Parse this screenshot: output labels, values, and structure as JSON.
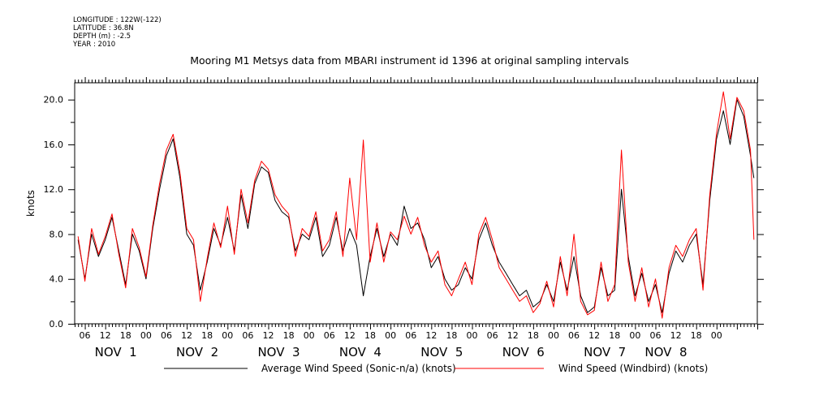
{
  "meta": {
    "longitude": "LONGITUDE : 122W(-122)",
    "latitude": "LATITUDE : 36.8N",
    "depth": "DEPTH (m) : -2.5",
    "year": "YEAR : 2010"
  },
  "chart_data": {
    "type": "line",
    "title": "Mooring M1 Metsys data from MBARI instrument id 1396 at original sampling intervals",
    "xlabel": "",
    "ylabel": "knots",
    "x_units": "hours since NOV 1 00:00 (2010)",
    "xlim": [
      3,
      204
    ],
    "ylim": [
      0,
      21.5
    ],
    "y_ticks": [
      0.0,
      4.0,
      8.0,
      12.0,
      16.0,
      20.0
    ],
    "y_tick_labels": [
      "0.0",
      "4.0",
      "8.0",
      "12.0",
      "16.0",
      "20.0"
    ],
    "x_hour_labels": [
      "06",
      "12",
      "18",
      "00",
      "06",
      "12",
      "18",
      "00",
      "06",
      "12",
      "18",
      "00",
      "06",
      "12",
      "18",
      "00",
      "06",
      "12",
      "18",
      "00",
      "06",
      "12",
      "18",
      "00",
      "06",
      "12",
      "18",
      "00",
      "06",
      "12",
      "18",
      "00"
    ],
    "x_hour_label_positions": [
      6,
      12,
      18,
      24,
      30,
      36,
      42,
      48,
      54,
      60,
      66,
      72,
      78,
      84,
      90,
      96,
      102,
      108,
      114,
      120,
      126,
      132,
      138,
      144,
      150,
      156,
      162,
      168,
      174,
      180,
      186,
      192
    ],
    "day_labels": [
      "NOV  1",
      "NOV  2",
      "NOV  3",
      "NOV  4",
      "NOV  5",
      "NOV  6",
      "NOV  7",
      "NOV  8"
    ],
    "day_label_positions": [
      12,
      36,
      60,
      84,
      108,
      132,
      156,
      174
    ],
    "grid": false,
    "legend_position": "bottom",
    "series": [
      {
        "name": "Average Wind Speed (Sonic-n/a) (knots)",
        "color": "#000000",
        "x": [
          4,
          6,
          8,
          10,
          12,
          14,
          16,
          18,
          20,
          22,
          24,
          26,
          28,
          30,
          32,
          34,
          36,
          38,
          40,
          42,
          44,
          46,
          48,
          50,
          52,
          54,
          56,
          58,
          60,
          62,
          64,
          66,
          68,
          70,
          72,
          74,
          76,
          78,
          80,
          82,
          84,
          86,
          88,
          90,
          92,
          94,
          96,
          98,
          100,
          102,
          104,
          106,
          108,
          110,
          112,
          114,
          116,
          118,
          120,
          122,
          124,
          126,
          128,
          130,
          132,
          134,
          136,
          138,
          140,
          142,
          144,
          146,
          148,
          150,
          152,
          154,
          156,
          158,
          160,
          162,
          164,
          166,
          168,
          170,
          172,
          174,
          176,
          178,
          180,
          182,
          184,
          186,
          188,
          190,
          192,
          194,
          196,
          198,
          200,
          202,
          203
        ],
        "y": [
          7.5,
          4.0,
          8.0,
          6.0,
          7.5,
          9.5,
          6.5,
          3.5,
          8.0,
          6.5,
          4.0,
          8.5,
          12.0,
          15.0,
          16.5,
          13.0,
          8.0,
          7.0,
          3.0,
          5.5,
          8.5,
          7.0,
          9.5,
          6.5,
          11.5,
          8.5,
          12.5,
          14.0,
          13.5,
          11.0,
          10.0,
          9.5,
          6.5,
          8.0,
          7.5,
          9.5,
          6.0,
          7.0,
          9.5,
          6.5,
          8.5,
          7.0,
          2.5,
          6.0,
          8.5,
          6.0,
          8.0,
          7.0,
          10.5,
          8.5,
          9.0,
          7.5,
          5.0,
          6.0,
          4.0,
          3.0,
          3.5,
          5.0,
          4.0,
          7.5,
          9.0,
          7.0,
          5.5,
          4.5,
          3.5,
          2.5,
          3.0,
          1.5,
          2.0,
          3.5,
          2.0,
          5.5,
          3.0,
          6.0,
          2.5,
          1.0,
          1.5,
          5.0,
          2.5,
          3.0,
          12.0,
          6.0,
          2.5,
          4.5,
          2.0,
          3.5,
          1.0,
          4.5,
          6.5,
          5.5,
          7.0,
          8.0,
          3.5,
          11.0,
          16.5,
          19.0,
          16.0,
          20.0,
          18.5,
          15.0,
          13.0
        ]
      },
      {
        "name": "Wind Speed (Windbird) (knots)",
        "color": "#ff0000",
        "x": [
          4,
          6,
          8,
          10,
          12,
          14,
          16,
          18,
          20,
          22,
          24,
          26,
          28,
          30,
          32,
          34,
          36,
          38,
          40,
          42,
          44,
          46,
          48,
          50,
          52,
          54,
          56,
          58,
          60,
          62,
          64,
          66,
          68,
          70,
          72,
          74,
          76,
          78,
          80,
          82,
          84,
          86,
          88,
          90,
          92,
          94,
          96,
          98,
          100,
          102,
          104,
          106,
          108,
          110,
          112,
          114,
          116,
          118,
          120,
          122,
          124,
          126,
          128,
          130,
          132,
          134,
          136,
          138,
          140,
          142,
          144,
          146,
          148,
          150,
          152,
          154,
          156,
          158,
          160,
          162,
          164,
          166,
          168,
          170,
          172,
          174,
          176,
          178,
          180,
          182,
          184,
          186,
          188,
          190,
          192,
          194,
          196,
          198,
          200,
          202,
          203
        ],
        "y": [
          7.8,
          3.8,
          8.5,
          6.2,
          7.8,
          9.8,
          6.2,
          3.2,
          8.5,
          6.8,
          4.2,
          8.8,
          12.5,
          15.5,
          16.9,
          13.5,
          8.5,
          7.5,
          2.0,
          5.8,
          9.0,
          6.8,
          10.5,
          6.2,
          12.0,
          9.0,
          12.8,
          14.5,
          13.8,
          11.5,
          10.5,
          9.8,
          6.0,
          8.5,
          7.8,
          10.0,
          6.5,
          7.5,
          10.0,
          6.0,
          13.0,
          7.5,
          16.4,
          5.5,
          9.0,
          5.5,
          8.2,
          7.5,
          9.6,
          8.0,
          9.5,
          7.0,
          5.5,
          6.5,
          3.5,
          2.5,
          4.0,
          5.5,
          3.5,
          8.0,
          9.5,
          7.5,
          5.0,
          4.0,
          3.0,
          2.0,
          2.5,
          1.0,
          1.8,
          3.8,
          1.5,
          6.0,
          2.5,
          8.0,
          2.0,
          0.8,
          1.2,
          5.5,
          2.0,
          3.5,
          15.5,
          5.5,
          2.0,
          5.0,
          1.5,
          4.0,
          0.5,
          5.0,
          7.0,
          6.0,
          7.5,
          8.5,
          3.0,
          11.5,
          17.0,
          20.7,
          16.5,
          20.2,
          19.0,
          15.5,
          7.5
        ]
      }
    ]
  }
}
